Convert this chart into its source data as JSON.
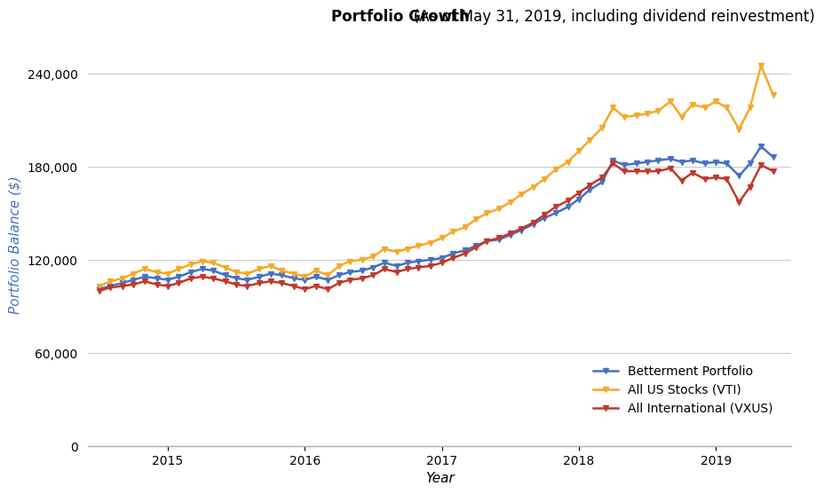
{
  "title_bold": "Portfolio Growth",
  "title_normal": "   (As of May 31, 2019, including dividend reinvestment)",
  "xlabel": "Year",
  "ylabel": "Portfolio Balance ($)",
  "ylim": [
    0,
    260000
  ],
  "yticks": [
    0,
    60000,
    120000,
    180000,
    240000
  ],
  "background_color": "#ffffff",
  "grid_color": "#cccccc",
  "series": {
    "betterment": {
      "label": "Betterment Portfolio",
      "color": "#4472c4",
      "x": [
        2014.5,
        2014.58,
        2014.67,
        2014.75,
        2014.83,
        2014.92,
        2015.0,
        2015.08,
        2015.17,
        2015.25,
        2015.33,
        2015.42,
        2015.5,
        2015.58,
        2015.67,
        2015.75,
        2015.83,
        2015.92,
        2016.0,
        2016.08,
        2016.17,
        2016.25,
        2016.33,
        2016.42,
        2016.5,
        2016.58,
        2016.67,
        2016.75,
        2016.83,
        2016.92,
        2017.0,
        2017.08,
        2017.17,
        2017.25,
        2017.33,
        2017.42,
        2017.5,
        2017.58,
        2017.67,
        2017.75,
        2017.83,
        2017.92,
        2018.0,
        2018.08,
        2018.17,
        2018.25,
        2018.33,
        2018.42,
        2018.5,
        2018.58,
        2018.67,
        2018.75,
        2018.83,
        2018.92,
        2019.0,
        2019.08,
        2019.17,
        2019.25,
        2019.33,
        2019.42
      ],
      "y": [
        101000,
        103000,
        105000,
        107000,
        109000,
        108000,
        107000,
        109000,
        112000,
        114000,
        113000,
        110000,
        108000,
        107000,
        109000,
        111000,
        110000,
        108000,
        107000,
        109000,
        107000,
        110000,
        112000,
        113000,
        115000,
        118000,
        116000,
        118000,
        119000,
        120000,
        121000,
        124000,
        126000,
        129000,
        132000,
        133000,
        136000,
        139000,
        143000,
        147000,
        150000,
        154000,
        159000,
        165000,
        170000,
        184000,
        181000,
        182000,
        183000,
        184000,
        185000,
        183000,
        184000,
        182000,
        183000,
        182000,
        174000,
        182000,
        193000,
        186000
      ]
    },
    "vti": {
      "label": "All US Stocks (VTI)",
      "color": "#f4a928",
      "x": [
        2014.5,
        2014.58,
        2014.67,
        2014.75,
        2014.83,
        2014.92,
        2015.0,
        2015.08,
        2015.17,
        2015.25,
        2015.33,
        2015.42,
        2015.5,
        2015.58,
        2015.67,
        2015.75,
        2015.83,
        2015.92,
        2016.0,
        2016.08,
        2016.17,
        2016.25,
        2016.33,
        2016.42,
        2016.5,
        2016.58,
        2016.67,
        2016.75,
        2016.83,
        2016.92,
        2017.0,
        2017.08,
        2017.17,
        2017.25,
        2017.33,
        2017.42,
        2017.5,
        2017.58,
        2017.67,
        2017.75,
        2017.83,
        2017.92,
        2018.0,
        2018.08,
        2018.17,
        2018.25,
        2018.33,
        2018.42,
        2018.5,
        2018.58,
        2018.67,
        2018.75,
        2018.83,
        2018.92,
        2019.0,
        2019.08,
        2019.17,
        2019.25,
        2019.33,
        2019.42
      ],
      "y": [
        103000,
        106000,
        108000,
        111000,
        114000,
        112000,
        111000,
        114000,
        117000,
        119000,
        118000,
        115000,
        112000,
        111000,
        114000,
        116000,
        113000,
        111000,
        109000,
        113000,
        110000,
        116000,
        119000,
        120000,
        122000,
        127000,
        125000,
        127000,
        129000,
        131000,
        134000,
        138000,
        141000,
        146000,
        150000,
        153000,
        157000,
        162000,
        167000,
        172000,
        178000,
        183000,
        190000,
        197000,
        205000,
        218000,
        212000,
        213000,
        214000,
        216000,
        222000,
        212000,
        220000,
        218000,
        222000,
        218000,
        204000,
        218000,
        245000,
        226000
      ]
    },
    "vxus": {
      "label": "All International (VXUS)",
      "color": "#c0392b",
      "x": [
        2014.5,
        2014.58,
        2014.67,
        2014.75,
        2014.83,
        2014.92,
        2015.0,
        2015.08,
        2015.17,
        2015.25,
        2015.33,
        2015.42,
        2015.5,
        2015.58,
        2015.67,
        2015.75,
        2015.83,
        2015.92,
        2016.0,
        2016.08,
        2016.17,
        2016.25,
        2016.33,
        2016.42,
        2016.5,
        2016.58,
        2016.67,
        2016.75,
        2016.83,
        2016.92,
        2017.0,
        2017.08,
        2017.17,
        2017.25,
        2017.33,
        2017.42,
        2017.5,
        2017.58,
        2017.67,
        2017.75,
        2017.83,
        2017.92,
        2018.0,
        2018.08,
        2018.17,
        2018.25,
        2018.33,
        2018.42,
        2018.5,
        2018.58,
        2018.67,
        2018.75,
        2018.83,
        2018.92,
        2019.0,
        2019.08,
        2019.17,
        2019.25,
        2019.33,
        2019.42
      ],
      "y": [
        100000,
        102000,
        103000,
        104000,
        106000,
        104000,
        103000,
        105000,
        108000,
        109000,
        108000,
        106000,
        104000,
        103000,
        105000,
        106000,
        105000,
        103000,
        101000,
        103000,
        101000,
        105000,
        107000,
        108000,
        110000,
        114000,
        112000,
        114000,
        115000,
        116000,
        118000,
        121000,
        124000,
        128000,
        132000,
        134000,
        137000,
        140000,
        144000,
        149000,
        154000,
        158000,
        163000,
        168000,
        173000,
        182000,
        177000,
        177000,
        177000,
        177000,
        179000,
        171000,
        176000,
        172000,
        173000,
        172000,
        157000,
        167000,
        181000,
        177000
      ]
    }
  },
  "xticks": [
    2015,
    2016,
    2017,
    2018,
    2019
  ],
  "xtick_labels": [
    "2015",
    "2016",
    "2017",
    "2018",
    "2019"
  ],
  "xlim": [
    2014.42,
    2019.55
  ],
  "title_fontsize": 12,
  "axis_label_fontsize": 11,
  "tick_fontsize": 10,
  "legend_fontsize": 10,
  "line_width": 1.8,
  "marker_size": 4
}
